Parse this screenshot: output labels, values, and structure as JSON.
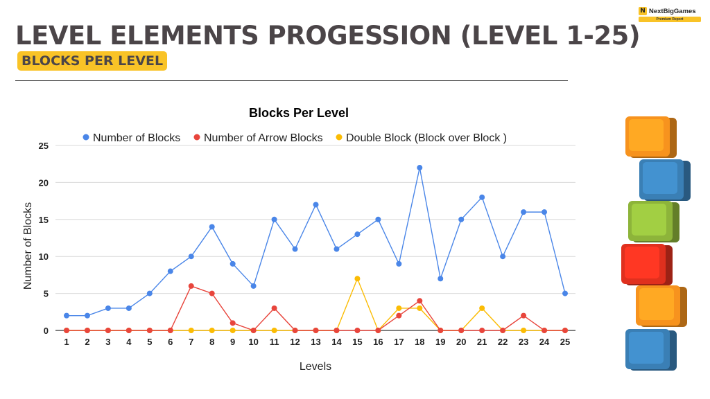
{
  "header": {
    "title": "LEVEL ELEMENTS PROGESSION (LEVEL 1-25)",
    "badge": "BLOCKS PER LEVEL"
  },
  "logo": {
    "name": "NextBigGames",
    "tagline": "Premium Report",
    "mark": "N"
  },
  "chart_data": {
    "type": "line",
    "title": "Blocks Per Level",
    "xlabel": "Levels",
    "ylabel": "Number of Blocks",
    "ylim": [
      0,
      25
    ],
    "yticks": [
      0,
      5,
      10,
      15,
      20,
      25
    ],
    "grid": true,
    "legend_position": "top",
    "categories": [
      "1",
      "2",
      "3",
      "4",
      "5",
      "6",
      "7",
      "8",
      "9",
      "10",
      "11",
      "12",
      "13",
      "14",
      "15",
      "16",
      "17",
      "18",
      "19",
      "20",
      "21",
      "22",
      "23",
      "24",
      "25"
    ],
    "series": [
      {
        "name": "Number of Blocks",
        "color": "#4a86e8",
        "values": [
          2,
          2,
          3,
          3,
          5,
          8,
          10,
          14,
          9,
          6,
          15,
          11,
          17,
          11,
          13,
          15,
          9,
          22,
          7,
          15,
          18,
          10,
          16,
          16,
          5
        ]
      },
      {
        "name": "Number of Arrow Blocks",
        "color": "#e8453c",
        "values": [
          0,
          0,
          0,
          0,
          0,
          0,
          6,
          5,
          1,
          0,
          3,
          0,
          0,
          0,
          0,
          0,
          2,
          4,
          0,
          0,
          0,
          0,
          2,
          0,
          0
        ]
      },
      {
        "name": "Double Block (Block over Block )",
        "color": "#fbbc04",
        "values": [
          0,
          0,
          0,
          0,
          0,
          0,
          0,
          0,
          0,
          0,
          0,
          0,
          0,
          0,
          7,
          0,
          3,
          3,
          0,
          0,
          3,
          0,
          0,
          0,
          0
        ]
      }
    ]
  },
  "decor": {
    "block_colors": [
      "#f7931e",
      "#3a7fb5",
      "#8db43a",
      "#e0301e",
      "#f7931e",
      "#3a7fb5"
    ]
  }
}
